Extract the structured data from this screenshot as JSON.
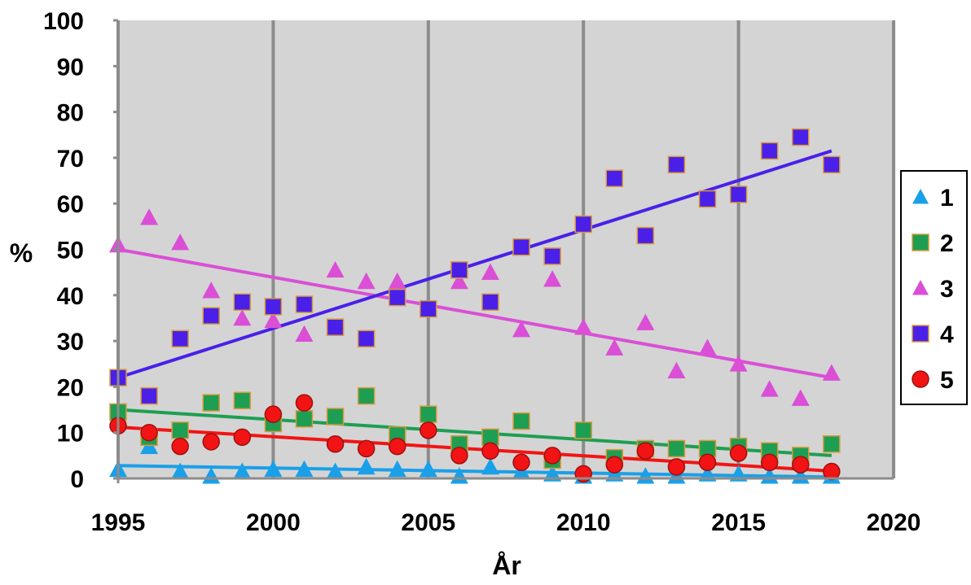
{
  "chart_data": {
    "type": "scatter",
    "title": "",
    "xlabel": "År",
    "ylabel": "%",
    "xlim": [
      1995,
      2020
    ],
    "ylim": [
      0,
      100
    ],
    "x_ticks": [
      "1995",
      "2000",
      "2005",
      "2010",
      "2015",
      "2020"
    ],
    "y_ticks": [
      "0",
      "10",
      "20",
      "30",
      "40",
      "50",
      "60",
      "70",
      "80",
      "90",
      "100"
    ],
    "grid": "vertical major lines every 5 years",
    "legend_position": "right",
    "x": [
      1995,
      1996,
      1997,
      1998,
      1999,
      2000,
      2001,
      2002,
      2003,
      2004,
      2005,
      2006,
      2007,
      2008,
      2009,
      2010,
      2011,
      2012,
      2013,
      2014,
      2015,
      2016,
      2017,
      2018
    ],
    "series": [
      {
        "name": "1",
        "marker": "triangle",
        "color": "#1AA0E8",
        "values": [
          2,
          7,
          1.5,
          0.5,
          1.5,
          2,
          2,
          1.5,
          2.5,
          2,
          2,
          0.5,
          2.5,
          1.5,
          1,
          0.5,
          1,
          0.5,
          0.5,
          1,
          1,
          0.5,
          0.5,
          0.5
        ],
        "trend": [
          2.8,
          0.3
        ]
      },
      {
        "name": "2",
        "marker": "square",
        "color": "#1E9E52",
        "values": [
          14.5,
          9,
          10.5,
          16.5,
          17,
          12,
          13,
          13.5,
          18,
          9.5,
          14,
          7.5,
          9,
          12.5,
          4,
          10.5,
          4.5,
          6.5,
          6.5,
          6.5,
          7,
          6,
          5,
          7.5
        ],
        "trend": [
          15,
          5
        ]
      },
      {
        "name": "3",
        "marker": "triangle",
        "color": "#DA4FD6",
        "values": [
          51,
          57,
          51.5,
          41,
          35,
          34.5,
          31.5,
          45.5,
          43,
          43,
          37,
          43,
          45,
          32.5,
          43.5,
          33,
          28.5,
          34,
          23.5,
          28.5,
          25,
          19.5,
          17.5,
          23
        ],
        "trend": [
          50,
          22
        ]
      },
      {
        "name": "4",
        "marker": "square",
        "color": "#4A20E8",
        "values": [
          22,
          18,
          30.5,
          35.5,
          38.5,
          37.5,
          38,
          33,
          30.5,
          39.5,
          37,
          45.5,
          38.5,
          50.5,
          48.5,
          55.5,
          65.5,
          53,
          68.5,
          61,
          62,
          71.5,
          74.5,
          68.5
        ],
        "trend": [
          22,
          71.5
        ]
      },
      {
        "name": "5",
        "marker": "circle",
        "color": "#F21414",
        "values": [
          11.5,
          10,
          7,
          8,
          9,
          14,
          16.5,
          7.5,
          6.5,
          7,
          10.5,
          5,
          6,
          3.5,
          5,
          1,
          3,
          6,
          2.5,
          3.5,
          5.5,
          3.5,
          3,
          1.5
        ],
        "trend": [
          11.2,
          1.6
        ]
      }
    ]
  }
}
